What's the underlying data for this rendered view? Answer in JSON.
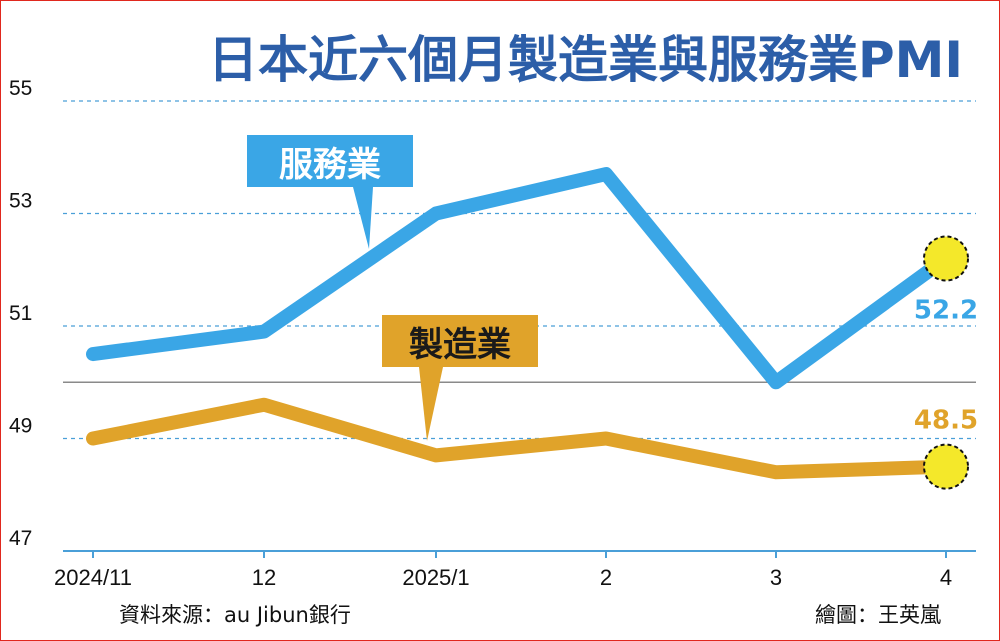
{
  "chart_data": {
    "type": "line",
    "title": "日本近六個月製造業與服務業PMI",
    "categories": [
      "2024/11",
      "12",
      "2025/1",
      "2",
      "3",
      "4"
    ],
    "ylim": [
      47,
      55
    ],
    "yticks": [
      "47",
      "49",
      "51",
      "53",
      "55"
    ],
    "reference_line": 50,
    "grid": "horizontal-dashed",
    "series": [
      {
        "name": "服務業",
        "color": "#3aa6e6",
        "values": [
          50.5,
          50.9,
          53.0,
          53.7,
          50.0,
          52.2
        ]
      },
      {
        "name": "製造業",
        "color": "#e0a32a",
        "values": [
          49.0,
          49.6,
          48.7,
          49.0,
          48.4,
          48.5
        ]
      }
    ],
    "end_labels": {
      "services": "52.2",
      "manufacturing": "48.5"
    }
  },
  "footer": {
    "source": "資料來源：au Jibun銀行",
    "credit": "繪圖：王英嵐"
  }
}
